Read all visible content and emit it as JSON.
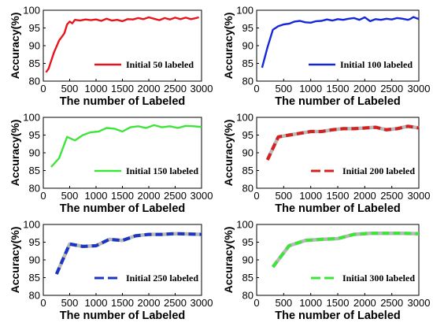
{
  "chart_data": [
    {
      "type": "line",
      "xlabel": "The number of Labeled",
      "ylabel": "Accuracy(%)",
      "xlim": [
        0,
        3000
      ],
      "ylim": [
        80,
        100
      ],
      "xticks": [
        0,
        500,
        1000,
        1500,
        2000,
        2500,
        3000
      ],
      "yticks": [
        80,
        85,
        90,
        95,
        100
      ],
      "xtick_labels": [
        "0",
        "500",
        "1000",
        "1500",
        "2000",
        "2500",
        "3000"
      ],
      "ytick_labels": [
        "80",
        "85",
        "90",
        "95",
        "100"
      ],
      "grid": false,
      "legend_position": "bottom-right",
      "series": [
        {
          "name": "Initial 50 labeled",
          "color": "#e8141b",
          "style": "solid",
          "x": [
            50,
            100,
            200,
            300,
            350,
            400,
            450,
            500,
            550,
            600,
            700,
            800,
            900,
            1000,
            1100,
            1200,
            1300,
            1400,
            1500,
            1600,
            1700,
            1800,
            1900,
            2000,
            2100,
            2200,
            2300,
            2400,
            2500,
            2600,
            2700,
            2800,
            2900,
            2950
          ],
          "y": [
            82.5,
            83.5,
            88,
            91.5,
            92.5,
            93.5,
            96,
            96.8,
            96.3,
            97.3,
            97.1,
            97.4,
            97.2,
            97.4,
            97.0,
            97.6,
            97.1,
            97.3,
            96.9,
            97.5,
            97.4,
            97.8,
            97.5,
            98.0,
            97.6,
            97.2,
            97.8,
            97.4,
            97.9,
            97.5,
            97.9,
            97.5,
            97.8,
            98.0
          ]
        }
      ]
    },
    {
      "type": "line",
      "xlabel": "The number of Labeled",
      "ylabel": "Accuracy(%)",
      "xlim": [
        0,
        3000
      ],
      "ylim": [
        80,
        100
      ],
      "xticks": [
        0,
        500,
        1000,
        1500,
        2000,
        2500,
        3000
      ],
      "yticks": [
        80,
        85,
        90,
        95,
        100
      ],
      "xtick_labels": [
        "0",
        "500",
        "1000",
        "1500",
        "2000",
        "2500",
        "3000"
      ],
      "ytick_labels": [
        "80",
        "85",
        "90",
        "95",
        "100"
      ],
      "grid": false,
      "legend_position": "bottom-right",
      "series": [
        {
          "name": "Initial 100 labeled",
          "color": "#1428d8",
          "style": "solid",
          "x": [
            100,
            200,
            300,
            400,
            500,
            600,
            700,
            800,
            900,
            1000,
            1100,
            1200,
            1300,
            1400,
            1500,
            1600,
            1700,
            1800,
            1900,
            2000,
            2100,
            2200,
            2300,
            2400,
            2500,
            2600,
            2700,
            2800,
            2850,
            2900,
            3000
          ],
          "y": [
            83.8,
            89.5,
            94.5,
            95.5,
            96.0,
            96.2,
            96.8,
            97.0,
            96.6,
            96.5,
            96.9,
            97.0,
            97.4,
            97.1,
            97.5,
            97.3,
            97.6,
            97.8,
            97.3,
            98.0,
            96.9,
            97.5,
            97.3,
            97.6,
            97.4,
            97.8,
            97.6,
            97.3,
            97.6,
            98.1,
            97.5
          ]
        }
      ]
    },
    {
      "type": "line",
      "xlabel": "The number of Labeled",
      "ylabel": "Accuracy(%)",
      "xlim": [
        0,
        3000
      ],
      "ylim": [
        80,
        100
      ],
      "xticks": [
        0,
        500,
        1000,
        1500,
        2000,
        2500,
        3000
      ],
      "yticks": [
        80,
        85,
        90,
        95,
        100
      ],
      "xtick_labels": [
        "0",
        "500",
        "1000",
        "1500",
        "2000",
        "2500",
        "3000"
      ],
      "ytick_labels": [
        "80",
        "85",
        "90",
        "95",
        "100"
      ],
      "grid": false,
      "legend_position": "bottom-right",
      "series": [
        {
          "name": "Initial 150 labeled",
          "color": "#3fe43a",
          "style": "solid",
          "x": [
            150,
            300,
            450,
            600,
            750,
            900,
            1050,
            1200,
            1350,
            1500,
            1650,
            1800,
            1950,
            2100,
            2250,
            2400,
            2550,
            2700,
            2850,
            3000
          ],
          "y": [
            86.0,
            88.5,
            94.5,
            93.5,
            95.0,
            95.8,
            96.0,
            97.0,
            96.8,
            96.0,
            97.2,
            97.5,
            97.0,
            97.8,
            97.2,
            97.5,
            97.0,
            97.6,
            97.5,
            97.3
          ]
        }
      ]
    },
    {
      "type": "line",
      "xlabel": "The number of Labeled",
      "ylabel": "Accuracy(%)",
      "xlim": [
        0,
        3000
      ],
      "ylim": [
        80,
        100
      ],
      "xticks": [
        0,
        500,
        1000,
        1500,
        2000,
        2500,
        3000
      ],
      "yticks": [
        80,
        85,
        90,
        95,
        100
      ],
      "xtick_labels": [
        "0",
        "500",
        "1000",
        "1500",
        "2000",
        "2500",
        "3000"
      ],
      "ytick_labels": [
        "80",
        "85",
        "90",
        "95",
        "100"
      ],
      "grid": false,
      "legend_position": "bottom-right",
      "series": [
        {
          "name": "Initial 200 labeled",
          "color": "#d62020",
          "style": "dashed",
          "x": [
            200,
            400,
            600,
            800,
            1000,
            1200,
            1400,
            1600,
            1800,
            2000,
            2200,
            2400,
            2600,
            2800,
            3000
          ],
          "y": [
            88.0,
            94.5,
            95.0,
            95.5,
            96.0,
            96.0,
            96.5,
            96.8,
            96.8,
            97.0,
            97.2,
            96.5,
            96.8,
            97.5,
            97.0
          ]
        }
      ]
    },
    {
      "type": "line",
      "xlabel": "The number of Labeled",
      "ylabel": "Accuracy(%)",
      "xlim": [
        0,
        3000
      ],
      "ylim": [
        80,
        100
      ],
      "xticks": [
        0,
        500,
        1000,
        1500,
        2000,
        2500,
        3000
      ],
      "yticks": [
        80,
        85,
        90,
        95,
        100
      ],
      "xtick_labels": [
        "0",
        "500",
        "1000",
        "1500",
        "2000",
        "2500",
        "3000"
      ],
      "ytick_labels": [
        "80",
        "85",
        "90",
        "95",
        "100"
      ],
      "grid": false,
      "legend_position": "bottom-right",
      "series": [
        {
          "name": "Initial 250 labeled",
          "color": "#1c36c4",
          "style": "dashed",
          "x": [
            250,
            500,
            750,
            1000,
            1250,
            1500,
            1750,
            2000,
            2250,
            2500,
            2750,
            3000
          ],
          "y": [
            86.0,
            94.5,
            93.8,
            94.0,
            95.8,
            95.5,
            96.8,
            97.2,
            97.2,
            97.4,
            97.3,
            97.2
          ]
        }
      ]
    },
    {
      "type": "line",
      "xlabel": "The number of Labeled",
      "ylabel": "Accuracy(%)",
      "xlim": [
        0,
        3000
      ],
      "ylim": [
        80,
        100
      ],
      "xticks": [
        0,
        500,
        1000,
        1500,
        2000,
        2500,
        3000
      ],
      "yticks": [
        80,
        85,
        90,
        95,
        100
      ],
      "xtick_labels": [
        "0",
        "500",
        "1000",
        "1500",
        "2000",
        "2500",
        "3000"
      ],
      "ytick_labels": [
        "80",
        "85",
        "90",
        "95",
        "100"
      ],
      "grid": false,
      "legend_position": "bottom-right",
      "series": [
        {
          "name": "Initial 300 labeled",
          "color": "#3fe43a",
          "style": "dashed",
          "x": [
            300,
            600,
            900,
            1200,
            1500,
            1800,
            2100,
            2400,
            2700,
            3000
          ],
          "y": [
            88.0,
            94.0,
            95.5,
            95.8,
            96.0,
            97.2,
            97.5,
            97.5,
            97.5,
            97.4
          ]
        }
      ]
    }
  ]
}
